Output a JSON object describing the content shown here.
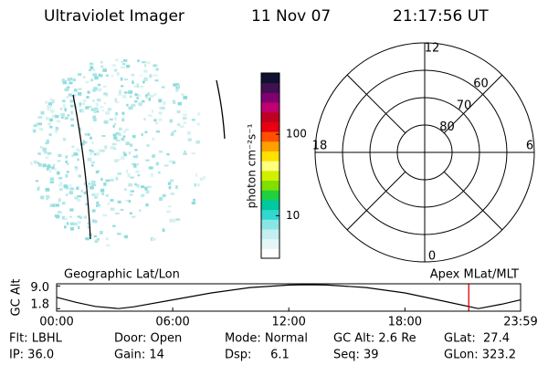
{
  "header": {
    "title": "Ultraviolet Imager",
    "date": "11 Nov 07",
    "time": "21:17:56 UT"
  },
  "colorbar": {
    "label": "photon cm⁻²s⁻¹",
    "log": true,
    "clim": [
      3,
      566
    ],
    "ticks": [
      10,
      100
    ],
    "colors": [
      "#ffffff",
      "#e4f6f6",
      "#c4eef0",
      "#8ae6e6",
      "#30d8d0",
      "#00c8a0",
      "#20d040",
      "#80e000",
      "#d0f000",
      "#ffff80",
      "#ffe000",
      "#ffa000",
      "#ff5000",
      "#e80010",
      "#c00020",
      "#c00070",
      "#800070",
      "#401050",
      "#101030"
    ]
  },
  "polar": {
    "rlim": [
      90,
      50
    ],
    "rings": [
      60,
      70,
      80
    ],
    "hours": [
      12,
      6,
      0,
      18
    ]
  },
  "chart_data": {
    "type": "line",
    "title_left": "Geographic Lat/Lon",
    "title_right": "Apex MLat/MLT",
    "y_label": "GC Alt",
    "x": [
      0,
      1,
      2,
      3.2,
      4,
      6,
      8,
      10,
      12,
      13,
      14,
      16,
      18,
      20,
      21.8,
      23,
      23.98
    ],
    "values": [
      5.4,
      3.8,
      2.5,
      1.8,
      2.4,
      4.6,
      6.8,
      8.5,
      9.3,
      9.4,
      9.3,
      8.5,
      6.8,
      4.2,
      1.8,
      3.2,
      4.6
    ],
    "color": "#000000",
    "marker_x": 21.3,
    "marker_color": "#e00000",
    "xlim": [
      0,
      23.98
    ],
    "xticks": [
      {
        "value": 0,
        "label": "00:00"
      },
      {
        "value": 6,
        "label": "06:00"
      },
      {
        "value": 12,
        "label": "12:00"
      },
      {
        "value": 18,
        "label": "18:00"
      },
      {
        "value": 23.98,
        "label": "23:59"
      }
    ],
    "ylim": [
      1.0,
      9.7
    ],
    "yticks": [
      {
        "value": 9.0,
        "label": "9.0"
      },
      {
        "value": 1.8,
        "label": "1.8"
      }
    ]
  },
  "footer": {
    "rows": [
      [
        "Flt: LBHL",
        "Door: Open",
        "Mode: Normal",
        "GC Alt: 2.6 Re",
        "GLat:  27.4"
      ],
      [
        "IP: 36.0",
        "Gain: 14",
        "Dsp:     6.1",
        "Seq: 39",
        "GLon: 323.2"
      ]
    ]
  }
}
